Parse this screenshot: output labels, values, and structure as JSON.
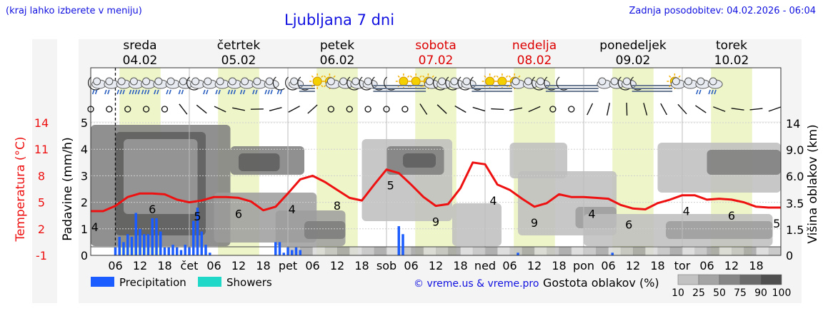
{
  "header": {
    "region_hint": "(kraj lahko izberete v meniju)",
    "title": "Ljubljana 7 dni",
    "updated": "Zadnja posodobitev: 04.02.2026 - 06:04"
  },
  "days": [
    {
      "name": "sreda",
      "date": "04.02",
      "weekend": false,
      "short": "čet"
    },
    {
      "name": "četrtek",
      "date": "05.02",
      "weekend": false,
      "short": "pet"
    },
    {
      "name": "petek",
      "date": "06.02",
      "weekend": false,
      "short": "sob"
    },
    {
      "name": "sobota",
      "date": "07.02",
      "weekend": true,
      "short": "ned"
    },
    {
      "name": "nedelja",
      "date": "08.02",
      "weekend": true,
      "short": "pon"
    },
    {
      "name": "ponedeljek",
      "date": "09.02",
      "weekend": false,
      "short": "tor"
    },
    {
      "name": "torek",
      "date": "10.02",
      "weekend": false,
      "short": ""
    }
  ],
  "legend": {
    "precipitation": "Precipitation",
    "showers": "Showers",
    "copyright": "© vreme.us & vreme.pro",
    "cloud_density": "Gostota oblakov (%)",
    "density_levels": [
      "10",
      "25",
      "50",
      "75",
      "90",
      "100"
    ]
  },
  "colors": {
    "temperature": "#ee1111",
    "precipitation": "#1a5cff",
    "showers": "#20d8c8",
    "weekend": "#dd0000",
    "title": "#1010e0",
    "daylight": "#eef5c8"
  },
  "chart_data": {
    "type": "line",
    "title": "Ljubljana 7 dni",
    "hours_axis": {
      "range_hours": [
        0,
        168
      ],
      "start": "04.02 00:00",
      "tick_hours": [
        "06",
        "12",
        "18"
      ]
    },
    "left_axis_temperature": {
      "label": "Temperatura (°C)",
      "ticks": [
        "14",
        "11",
        "8",
        "5",
        "2",
        "-1"
      ],
      "range": [
        -1,
        14
      ]
    },
    "left_axis_precip": {
      "label": "Padavine (mm/h)",
      "ticks": [
        "0",
        "1",
        "2",
        "3",
        "4",
        "5"
      ],
      "range": [
        0,
        5
      ]
    },
    "right_axis_cloud": {
      "label": "Višina oblakov (km)",
      "ticks": [
        "0",
        "1.5",
        "3.5",
        "6.0",
        "9.0",
        "14"
      ]
    },
    "now_hour": 6,
    "series": [
      {
        "name": "Temperatura",
        "hours": [
          0,
          3,
          6,
          9,
          12,
          15,
          18,
          21,
          24,
          27,
          30,
          33,
          36,
          39,
          42,
          45,
          48,
          51,
          54,
          57,
          60,
          63,
          66,
          69,
          72,
          75,
          78,
          81,
          84,
          87,
          90,
          93,
          96,
          99,
          102,
          105,
          108,
          111,
          114,
          117,
          120,
          123,
          126,
          129,
          132,
          135,
          138,
          141,
          144,
          147,
          150,
          153,
          156,
          159,
          162,
          165,
          168
        ],
        "values": [
          4.0,
          4.0,
          4.6,
          5.6,
          6.0,
          6.0,
          5.9,
          5.3,
          5.0,
          5.2,
          5.6,
          5.6,
          5.5,
          5.1,
          4.1,
          4.5,
          6.0,
          7.6,
          8.0,
          7.3,
          6.4,
          5.5,
          5.2,
          7.0,
          8.7,
          8.3,
          7.0,
          5.6,
          4.6,
          4.8,
          6.6,
          9.5,
          9.3,
          7.0,
          6.4,
          5.4,
          4.5,
          4.9,
          5.9,
          5.6,
          5.6,
          5.5,
          5.4,
          4.7,
          4.3,
          4.2,
          4.9,
          5.3,
          5.8,
          5.8,
          5.3,
          5.4,
          5.3,
          5.0,
          4.5,
          4.4,
          4.4
        ]
      },
      {
        "name": "Precipitation",
        "hours": [
          6,
          7,
          8,
          9,
          10,
          11,
          12,
          13,
          14,
          15,
          16,
          17,
          18,
          19,
          20,
          21,
          22,
          23,
          24,
          25,
          26,
          27,
          28,
          29,
          45,
          46,
          47,
          48,
          49,
          50,
          51,
          52,
          53,
          54,
          55,
          56,
          57,
          58,
          59,
          60,
          61,
          62,
          63,
          64,
          65,
          66,
          67,
          68,
          69,
          70,
          71,
          72,
          73,
          74,
          75,
          76,
          77,
          78,
          79,
          80,
          81,
          82,
          83,
          84,
          85,
          86,
          87,
          88,
          89,
          90,
          91,
          92,
          93,
          94,
          95,
          96,
          97,
          98,
          99,
          100,
          101,
          102,
          103,
          104,
          105,
          106,
          107,
          108,
          109,
          110,
          111,
          112,
          113,
          114,
          115,
          116,
          117,
          118,
          119,
          120,
          121,
          122,
          123,
          124,
          125,
          126,
          127,
          128,
          129,
          130,
          131,
          132,
          133,
          134,
          135,
          136,
          137,
          138,
          139,
          140,
          141,
          142,
          143,
          144,
          145,
          146,
          147,
          148,
          149,
          150,
          151,
          152,
          153,
          154,
          155,
          156,
          157,
          158,
          159,
          160,
          161,
          162,
          163,
          164,
          165,
          166,
          167
        ],
        "values": [
          0.3,
          0.7,
          0.5,
          0.8,
          0.7,
          1.6,
          1.0,
          0.8,
          0.8,
          1.4,
          1.4,
          0.9,
          0.3,
          0.3,
          0.4,
          0.3,
          0.2,
          0.4,
          0.3,
          1.3,
          1.8,
          0.9,
          0.4,
          0.1,
          0.5,
          0.5,
          0.1,
          0.3,
          0.2,
          0.3,
          0.2,
          0.0,
          0.0,
          0.0,
          0.0,
          0.0,
          0.0,
          0.0,
          0.0,
          0.0,
          0.0,
          0.0,
          0.0,
          0.0,
          0.0,
          0.0,
          0.0,
          0.0,
          0.0,
          0.0,
          0.0,
          0.0,
          0.0,
          0.0,
          1.1,
          0.8,
          0.0,
          0.0,
          0.0,
          0.0,
          0.0,
          0.0,
          0.0,
          0.0,
          0.0,
          0.0,
          0.0,
          0.0,
          0.0,
          0.0,
          0.0,
          0.0,
          0.0,
          0.0,
          0.0,
          0.0,
          0.0,
          0.0,
          0.0,
          0.0,
          0.0,
          0.0,
          0.0,
          0.1,
          0.0,
          0.0,
          0.0,
          0.0,
          0.0,
          0.0,
          0.0,
          0.0,
          0.0,
          0.0,
          0.0,
          0.0,
          0.0,
          0.0,
          0.0,
          0.0,
          0.0,
          0.0,
          0.0,
          0.0,
          0.0,
          0.0,
          0.1,
          0.0,
          0.0,
          0.0,
          0.0,
          0.0,
          0.0,
          0.0,
          0.0,
          0.0,
          0.0,
          0.0,
          0.0,
          0.0,
          0.0,
          0.0,
          0.0,
          0.0,
          0.0,
          0.0,
          0.0,
          0.0,
          0.0,
          0.0,
          0.0,
          0.0,
          0.0,
          0.0,
          0.0,
          0.0,
          0.0,
          0.0,
          0.0,
          0.0,
          0.0,
          0.0,
          0.0,
          0.0,
          0.0,
          0.0,
          0.0
        ]
      }
    ],
    "temp_labels": [
      {
        "hour": 1,
        "text": "4"
      },
      {
        "hour": 15,
        "text": "6"
      },
      {
        "hour": 26,
        "text": "5"
      },
      {
        "hour": 36,
        "text": "6"
      },
      {
        "hour": 49,
        "text": "4"
      },
      {
        "hour": 60,
        "text": "8"
      },
      {
        "hour": 73,
        "text": "5"
      },
      {
        "hour": 84,
        "text": "9"
      },
      {
        "hour": 98,
        "text": "4"
      },
      {
        "hour": 108,
        "text": "9"
      },
      {
        "hour": 122,
        "text": "4"
      },
      {
        "hour": 131,
        "text": "6"
      },
      {
        "hour": 145,
        "text": "4"
      },
      {
        "hour": 156,
        "text": "6"
      },
      {
        "hour": 167,
        "text": "5"
      }
    ],
    "daylight_hours": [
      [
        7,
        17
      ],
      [
        31,
        41
      ],
      [
        55,
        65
      ],
      [
        79,
        89
      ],
      [
        103,
        113
      ],
      [
        127,
        137
      ],
      [
        151,
        161
      ]
    ],
    "grid": true,
    "legend_position": "bottom"
  },
  "symbols": [
    {
      "hour": 1.5,
      "icon": "night-cloud-drizzle-icon"
    },
    {
      "hour": 4.5,
      "icon": "cloud-drizzle-icon"
    },
    {
      "hour": 7.5,
      "icon": "cloud-rain-icon"
    },
    {
      "hour": 10.5,
      "icon": "cloud-heavy-rain-icon"
    },
    {
      "hour": 13.5,
      "icon": "cloud-rain-icon"
    },
    {
      "hour": 16.5,
      "icon": "cloud-drizzle-icon"
    },
    {
      "hour": 19.5,
      "icon": "cloud-drizzle-icon"
    },
    {
      "hour": 22.5,
      "icon": "cloud-drizzle-icon"
    },
    {
      "hour": 25.5,
      "icon": "night-cloud-icon"
    },
    {
      "hour": 28.5,
      "icon": "cloud-drizzle-icon"
    },
    {
      "hour": 31.5,
      "icon": "cloud-drizzle-icon"
    },
    {
      "hour": 34.5,
      "icon": "cloud-rain-icon"
    },
    {
      "hour": 37.5,
      "icon": "cloud-drizzle-icon"
    },
    {
      "hour": 40.5,
      "icon": "cloud-drizzle-icon"
    },
    {
      "hour": 43.5,
      "icon": "cloud-rain-icon"
    },
    {
      "hour": 46.5,
      "icon": "night-drizzle-icon"
    },
    {
      "hour": 49.5,
      "icon": "night-cloud-icon"
    },
    {
      "hour": 52.5,
      "icon": "night-fog-icon"
    },
    {
      "hour": 55.5,
      "icon": "sun-icon"
    },
    {
      "hour": 58.5,
      "icon": "sun-cloud-icon"
    },
    {
      "hour": 61.5,
      "icon": "cloud-icon"
    },
    {
      "hour": 64.5,
      "icon": "night-cloud-icon"
    },
    {
      "hour": 67.5,
      "icon": "night-cloud-icon"
    },
    {
      "hour": 70.5,
      "icon": "night-fog-icon"
    },
    {
      "hour": 73.5,
      "icon": "night-fog-icon"
    },
    {
      "hour": 76.5,
      "icon": "sun-fog-icon"
    },
    {
      "hour": 79.5,
      "icon": "sun-fog-icon"
    },
    {
      "hour": 82.5,
      "icon": "sun-cloud-icon"
    },
    {
      "hour": 85.5,
      "icon": "night-cloud-icon"
    },
    {
      "hour": 88.5,
      "icon": "night-cloud-icon"
    },
    {
      "hour": 91.5,
      "icon": "night-cloud-icon"
    },
    {
      "hour": 94.5,
      "icon": "night-fog-icon"
    },
    {
      "hour": 97.5,
      "icon": "sun-fog-icon"
    },
    {
      "hour": 100.5,
      "icon": "sun-fog-icon"
    },
    {
      "hour": 103.5,
      "icon": "sun-cloud-icon"
    },
    {
      "hour": 106.5,
      "icon": "cloud-icon"
    },
    {
      "hour": 109.5,
      "icon": "night-cloud-icon"
    },
    {
      "hour": 112.5,
      "icon": "night-fog-icon"
    },
    {
      "hour": 115.5,
      "icon": "night-fog-icon"
    },
    {
      "hour": 118.5,
      "icon": "fog-icon"
    },
    {
      "hour": 121.5,
      "icon": "fog-icon"
    },
    {
      "hour": 124.5,
      "icon": "cloud-icon"
    },
    {
      "hour": 127.5,
      "icon": "cloud-icon"
    },
    {
      "hour": 130.5,
      "icon": "night-cloud-icon"
    },
    {
      "hour": 133.5,
      "icon": "night-fog-icon"
    },
    {
      "hour": 136.5,
      "icon": "fog-icon"
    },
    {
      "hour": 139.5,
      "icon": "fog-icon"
    },
    {
      "hour": 142.5,
      "icon": "sun-cloud-icon"
    },
    {
      "hour": 145.5,
      "icon": "cloud-icon"
    },
    {
      "hour": 148.5,
      "icon": "cloud-drizzle-icon"
    },
    {
      "hour": 151.5,
      "icon": "cloud-rain-icon"
    }
  ]
}
